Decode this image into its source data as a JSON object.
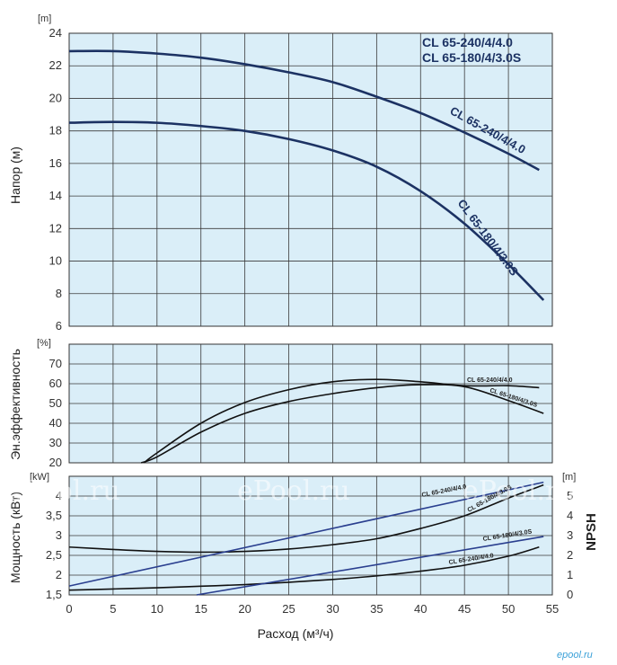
{
  "brand": "epool.ru",
  "watermark": "ePool.ru",
  "chart_data": [
    {
      "type": "line",
      "panel": "head",
      "ylabel": "Напор (м)",
      "yunit": "[m]",
      "ylim": [
        6,
        24
      ],
      "yticks": [
        6,
        8,
        10,
        12,
        14,
        16,
        18,
        20,
        22,
        24
      ],
      "xlim": [
        0,
        55
      ],
      "grid": true,
      "legend": [
        "CL 65-240/4/4.0",
        "CL 65-180/4/3.0S"
      ],
      "series": [
        {
          "name": "CL 65-240/4/4.0",
          "color": "#1c3263",
          "x": [
            0,
            5,
            10,
            15,
            20,
            25,
            30,
            35,
            40,
            45,
            50,
            53.5
          ],
          "y": [
            22.9,
            22.9,
            22.75,
            22.5,
            22.1,
            21.6,
            21.0,
            20.1,
            19.1,
            17.9,
            16.6,
            15.6
          ]
        },
        {
          "name": "CL 65-180/4/3.0S",
          "color": "#1c3263",
          "x": [
            0,
            5,
            10,
            15,
            20,
            25,
            30,
            35,
            40,
            45,
            50,
            54
          ],
          "y": [
            18.5,
            18.55,
            18.5,
            18.3,
            18.0,
            17.5,
            16.8,
            15.8,
            14.3,
            12.3,
            9.8,
            7.6
          ]
        }
      ]
    },
    {
      "type": "line",
      "panel": "efficiency",
      "ylabel": "Эн.эффективность",
      "yunit": "[%]",
      "ylim": [
        20,
        80
      ],
      "yticks": [
        20,
        30,
        40,
        50,
        60,
        70
      ],
      "xlim": [
        0,
        55
      ],
      "grid": true,
      "series": [
        {
          "name": "CL 65-240/4/4.0",
          "color": "#111111",
          "x": [
            8.5,
            10,
            15,
            20,
            25,
            30,
            35,
            40,
            45,
            50,
            53.5
          ],
          "y": [
            20,
            25,
            40,
            50.5,
            57,
            61,
            62.2,
            61,
            59,
            59,
            58
          ]
        },
        {
          "name": "CL 65-180/4/3.0S",
          "color": "#111111",
          "x": [
            8.2,
            10,
            15,
            20,
            25,
            30,
            35,
            40,
            45,
            50,
            54
          ],
          "y": [
            20,
            23,
            35.5,
            45,
            51,
            55,
            58,
            59.5,
            58.5,
            51.5,
            45
          ]
        }
      ]
    },
    {
      "type": "line",
      "panel": "power-npsh",
      "ylabel": "Мощность (кВт)",
      "yunit": "[kW]",
      "ylim": [
        1.5,
        4.5
      ],
      "yticks": [
        1.5,
        2,
        2.5,
        3,
        3.5,
        4
      ],
      "ytick_labels": [
        "1,5",
        "2",
        "2,5",
        "3",
        "3,5",
        "4"
      ],
      "y2label": "NPSH",
      "y2unit": "[m]",
      "y2lim": [
        0,
        6
      ],
      "y2ticks": [
        0,
        1,
        2,
        3,
        4,
        5
      ],
      "xlabel": "Расход (м³/ч)",
      "xlim": [
        0,
        55
      ],
      "xticks": [
        0,
        5,
        10,
        15,
        20,
        25,
        30,
        35,
        40,
        45,
        50,
        55
      ],
      "grid": true,
      "series": [
        {
          "name": "CL 65-180/4/3.0S",
          "kind": "power",
          "color": "#111111",
          "x": [
            0,
            5,
            10,
            15,
            20,
            25,
            30,
            35,
            40,
            45,
            50,
            54
          ],
          "y": [
            2.71,
            2.65,
            2.6,
            2.58,
            2.6,
            2.66,
            2.77,
            2.92,
            3.18,
            3.5,
            3.95,
            4.28
          ]
        },
        {
          "name": "CL 65-240/4/4.0",
          "kind": "power",
          "color": "#111111",
          "x": [
            0,
            5,
            10,
            15,
            20,
            25,
            30,
            35,
            40,
            45,
            50,
            53.5
          ],
          "y": [
            1.62,
            1.65,
            1.68,
            1.72,
            1.76,
            1.82,
            1.89,
            1.98,
            2.1,
            2.25,
            2.48,
            2.71
          ]
        },
        {
          "name": "CL 65-240/4/4.0",
          "kind": "npsh",
          "color": "#2a3f8f",
          "x": [
            0,
            54
          ],
          "y": [
            0.45,
            5.7
          ]
        },
        {
          "name": "CL 65-180/4/3.0S",
          "kind": "npsh",
          "color": "#2a3f8f",
          "x": [
            14.5,
            54
          ],
          "y": [
            0,
            2.95
          ]
        }
      ],
      "annotations": [
        "CL 65-240/4/4.0",
        "CL 65-180/4/3.0S",
        "CL 65-180/4/3.0S",
        "CL 65-240/4/4.0"
      ]
    }
  ]
}
